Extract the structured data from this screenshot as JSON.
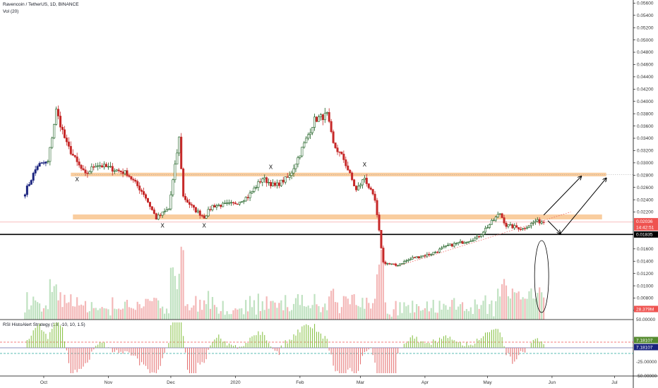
{
  "header": {
    "symbol": "Ravencoin / TetherUS, 1D, BINANCE",
    "volume_label": "Vol (20)",
    "indicator_label": "RSI HistoAlert Strategy (13, -10, 10, 1.5)"
  },
  "price_axis": {
    "ticks": [
      "0.05600",
      "0.05400",
      "0.05200",
      "0.05000",
      "0.04800",
      "0.04600",
      "0.04400",
      "0.04200",
      "0.04000",
      "0.03800",
      "0.03600",
      "0.03400",
      "0.03200",
      "0.03000",
      "0.02800",
      "0.02600",
      "0.02400",
      "0.02200",
      "0.01600",
      "0.01400",
      "0.01200",
      "0.01000",
      "0.00800",
      "0.00600"
    ]
  },
  "price_badges": {
    "last_price": "0.02036",
    "countdown": "14:42:51",
    "support_price": "0.01835",
    "volume_value": "28.379M"
  },
  "indicator_axis": {
    "ticks": [
      "50.00000",
      "-25.00000",
      "-50.00000"
    ],
    "badge_upper": "7.18107",
    "badge_lower": "7.18107"
  },
  "time_axis": {
    "labels": [
      "Oct",
      "Nov",
      "Dec",
      "2020",
      "Feb",
      "Mar",
      "Apr",
      "May",
      "Jun",
      "Jul"
    ]
  },
  "annotations": {
    "x_label": "X"
  },
  "colors": {
    "up": "#26a69a",
    "up_dark": "#1b5e20",
    "down": "#c62828",
    "blue_bars": "#1a237e",
    "zone": "#f6b26b",
    "volume_up": "#a5d6a7",
    "volume_down": "#ef9a9a",
    "hist_up": "#8bc34a",
    "hist_down": "#e57373"
  },
  "chart_data": {
    "type": "candlestick",
    "title": "Ravencoin / TetherUS, 1D, BINANCE",
    "ylim": [
      0.0045,
      0.0565
    ],
    "y_scale": "linear",
    "x_range": [
      "2019-09-10",
      "2020-07-10"
    ],
    "approx_close_path": [
      [
        "2019-09-22",
        0.0252
      ],
      [
        "2019-09-28",
        0.0296
      ],
      [
        "2019-10-03",
        0.0301
      ],
      [
        "2019-10-07",
        0.0385
      ],
      [
        "2019-10-12",
        0.033
      ],
      [
        "2019-10-17",
        0.03
      ],
      [
        "2019-10-21",
        0.028
      ],
      [
        "2019-10-26",
        0.0298
      ],
      [
        "2019-11-03",
        0.029
      ],
      [
        "2019-11-10",
        0.0283
      ],
      [
        "2019-11-18",
        0.025
      ],
      [
        "2019-11-24",
        0.021
      ],
      [
        "2019-11-30",
        0.0225
      ],
      [
        "2019-12-05",
        0.034
      ],
      [
        "2019-12-07",
        0.0245
      ],
      [
        "2019-12-12",
        0.0225
      ],
      [
        "2019-12-17",
        0.0212
      ],
      [
        "2019-12-21",
        0.023
      ],
      [
        "2019-12-31",
        0.0233
      ],
      [
        "2020-01-07",
        0.0245
      ],
      [
        "2020-01-14",
        0.0275
      ],
      [
        "2020-01-20",
        0.0262
      ],
      [
        "2020-01-27",
        0.0278
      ],
      [
        "2020-02-04",
        0.0338
      ],
      [
        "2020-02-08",
        0.037
      ],
      [
        "2020-02-14",
        0.0378
      ],
      [
        "2020-02-17",
        0.033
      ],
      [
        "2020-02-22",
        0.0306
      ],
      [
        "2020-02-28",
        0.0255
      ],
      [
        "2020-03-03",
        0.0276
      ],
      [
        "2020-03-08",
        0.0238
      ],
      [
        "2020-03-12",
        0.0138
      ],
      [
        "2020-03-18",
        0.0133
      ],
      [
        "2020-03-26",
        0.0145
      ],
      [
        "2020-04-04",
        0.0152
      ],
      [
        "2020-04-12",
        0.0165
      ],
      [
        "2020-04-20",
        0.0172
      ],
      [
        "2020-04-26",
        0.0178
      ],
      [
        "2020-05-02",
        0.02
      ],
      [
        "2020-05-07",
        0.0218
      ],
      [
        "2020-05-10",
        0.0198
      ],
      [
        "2020-05-18",
        0.0193
      ],
      [
        "2020-05-24",
        0.0205
      ],
      [
        "2020-05-28",
        0.0204
      ]
    ],
    "support_line": 0.01835,
    "resistance_zones": [
      {
        "from": 0.0278,
        "to": 0.0284
      },
      {
        "from": 0.0208,
        "to": 0.0216
      }
    ],
    "projection_arrows": [
      {
        "from": [
          "2020-05-28",
          0.0215
        ],
        "to": [
          "2020-06-15",
          0.0278
        ]
      },
      {
        "from": [
          "2020-06-05",
          0.0185
        ],
        "to": [
          "2020-06-27",
          0.0275
        ]
      }
    ],
    "indicator": {
      "name": "RSI HistoAlert Strategy (13, -10, 10, 1.5)",
      "ylim": [
        -50,
        50
      ],
      "levels": [
        10,
        -10,
        7.18107
      ]
    }
  }
}
